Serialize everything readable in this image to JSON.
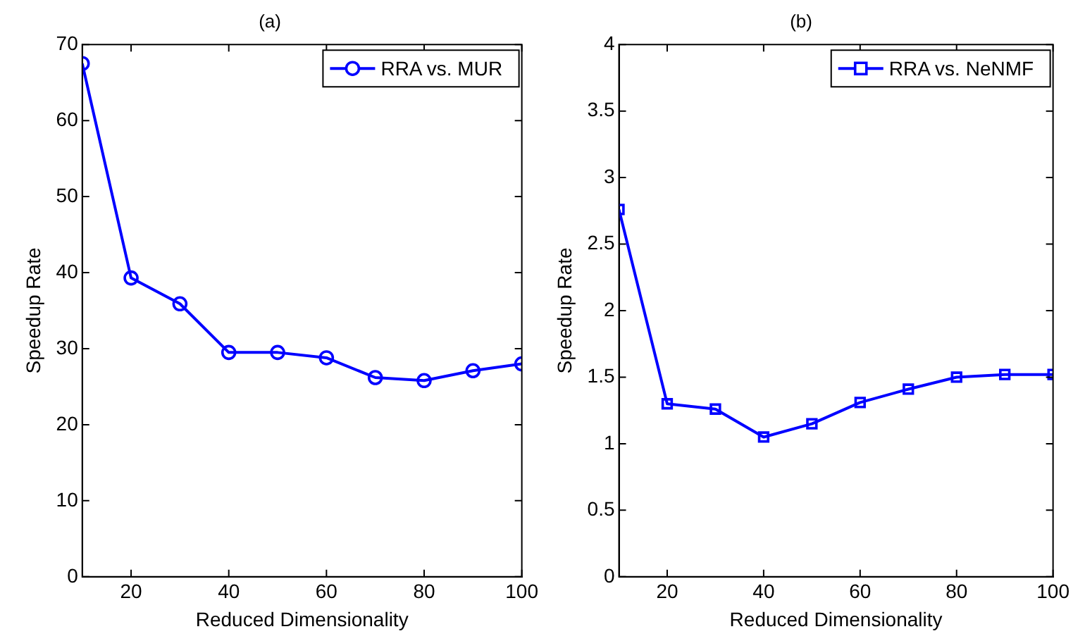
{
  "chart_data": [
    {
      "type": "line",
      "title": "(a)",
      "xlabel": "Reduced Dimensionality",
      "ylabel": "Speedup Rate",
      "x": [
        10,
        20,
        30,
        40,
        50,
        60,
        70,
        80,
        90,
        100
      ],
      "series": [
        {
          "name": "RRA vs. MUR",
          "color": "#0000ff",
          "values": [
            67.5,
            39.3,
            35.9,
            29.5,
            29.5,
            28.8,
            26.2,
            25.8,
            27.1,
            28.0
          ]
        }
      ],
      "xlim": [
        10,
        100
      ],
      "xticks": [
        20,
        40,
        60,
        80,
        100
      ],
      "ylim": [
        0,
        70
      ],
      "yticks": [
        0,
        10,
        20,
        30,
        40,
        50,
        60,
        70
      ],
      "grid": false,
      "legend": "top right",
      "marker": "circle",
      "line_style": "solid"
    },
    {
      "type": "line",
      "title": "(b)",
      "xlabel": "Reduced Dimensionality",
      "ylabel": "Speedup Rate",
      "x": [
        10,
        20,
        30,
        40,
        50,
        60,
        70,
        80,
        90,
        100
      ],
      "series": [
        {
          "name": "RRA vs. NeNMF",
          "color": "#0000ff",
          "values": [
            2.76,
            1.3,
            1.26,
            1.05,
            1.15,
            1.31,
            1.41,
            1.5,
            1.52,
            1.52
          ]
        }
      ],
      "xlim": [
        10,
        100
      ],
      "xticks": [
        20,
        40,
        60,
        80,
        100
      ],
      "ylim": [
        0,
        4
      ],
      "yticks": [
        0,
        0.5,
        1,
        1.5,
        2,
        2.5,
        3,
        3.5,
        4
      ],
      "grid": false,
      "legend": "top right",
      "marker": "square",
      "line_style": "solid"
    }
  ]
}
